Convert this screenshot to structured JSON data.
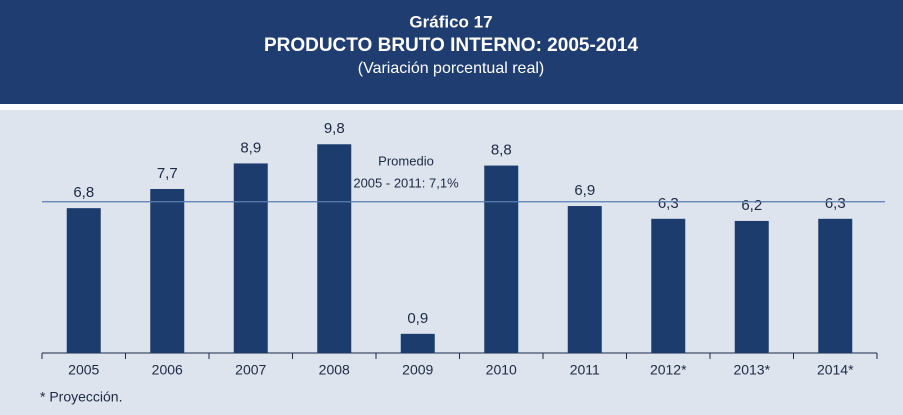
{
  "chart_data": {
    "type": "bar",
    "title": "Gráfico 17",
    "subtitle": "PRODUCTO BRUTO INTERNO: 2005-2014",
    "subtitle2": "(Variación porcentual real)",
    "categories": [
      "2005",
      "2006",
      "2007",
      "2008",
      "2009",
      "2010",
      "2011",
      "2012*",
      "2013*",
      "2014*"
    ],
    "values": [
      6.8,
      7.7,
      8.9,
      9.8,
      0.9,
      8.8,
      6.9,
      6.3,
      6.2,
      6.3
    ],
    "value_labels": [
      "6,8",
      "7,7",
      "8,9",
      "9,8",
      "0,9",
      "8,8",
      "6,9",
      "6,3",
      "6,2",
      "6,3"
    ],
    "color": "#1c3c6e",
    "reference_line": {
      "value": 7.1,
      "label": [
        "Promedio",
        "2005 - 2011: 7,1%"
      ],
      "color": "#5a7eb0"
    },
    "footnote": "* Proyección."
  }
}
